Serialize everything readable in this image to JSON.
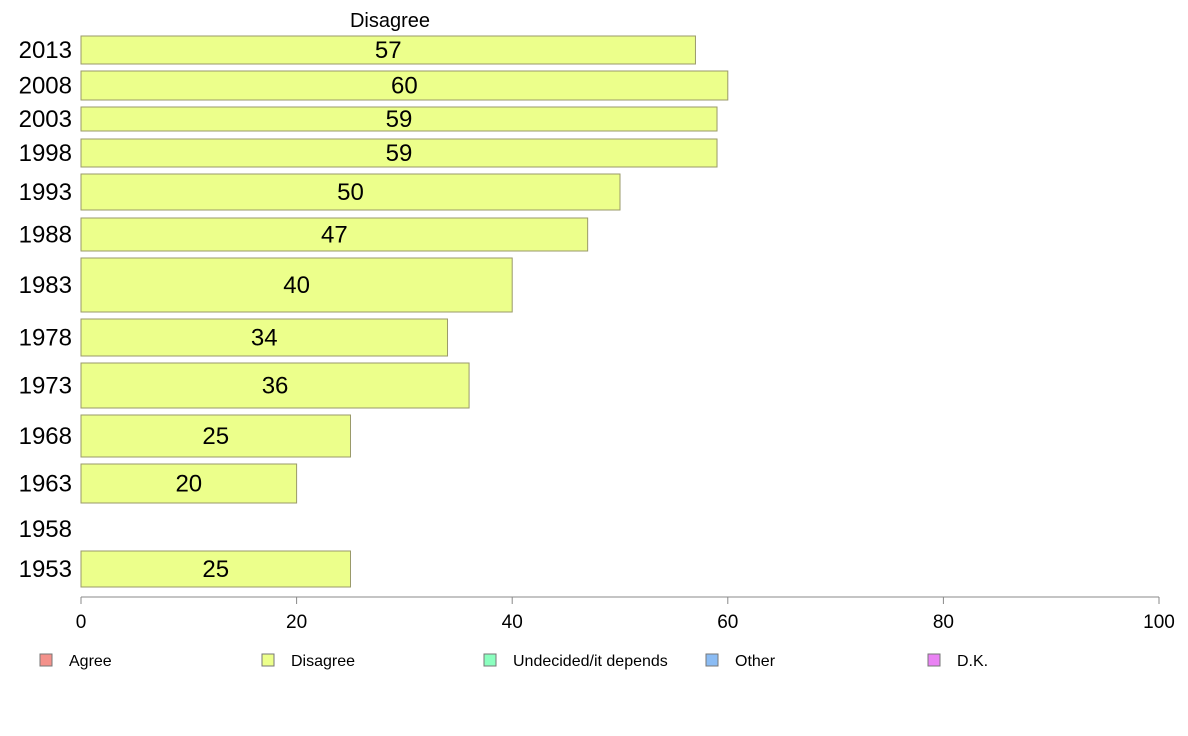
{
  "chart_data": {
    "type": "bar",
    "orientation": "horizontal",
    "title": "Disagree",
    "categories": [
      "2013",
      "2008",
      "2003",
      "1998",
      "1993",
      "1988",
      "1983",
      "1978",
      "1973",
      "1968",
      "1963",
      "1958",
      "1953"
    ],
    "series": [
      {
        "name": "Disagree",
        "values": [
          57,
          60,
          59,
          59,
          50,
          47,
          40,
          34,
          36,
          25,
          20,
          null,
          25
        ]
      }
    ],
    "xlim": [
      0,
      100
    ],
    "xticks": [
      0,
      20,
      40,
      60,
      80,
      100
    ],
    "grid": false,
    "legend": {
      "position": "bottom",
      "items": [
        {
          "label": "Agree",
          "color": "#f4918b"
        },
        {
          "label": "Disagree",
          "color": "#ecff8b"
        },
        {
          "label": "Undecided/it depends",
          "color": "#8bffbf"
        },
        {
          "label": "Other",
          "color": "#8bbcf4"
        },
        {
          "label": "D.K.",
          "color": "#ea82f4"
        }
      ]
    },
    "colors": {
      "bar_fill": "#ecff8b",
      "bar_stroke": "#9a9a6a",
      "axis": "#888888"
    }
  }
}
